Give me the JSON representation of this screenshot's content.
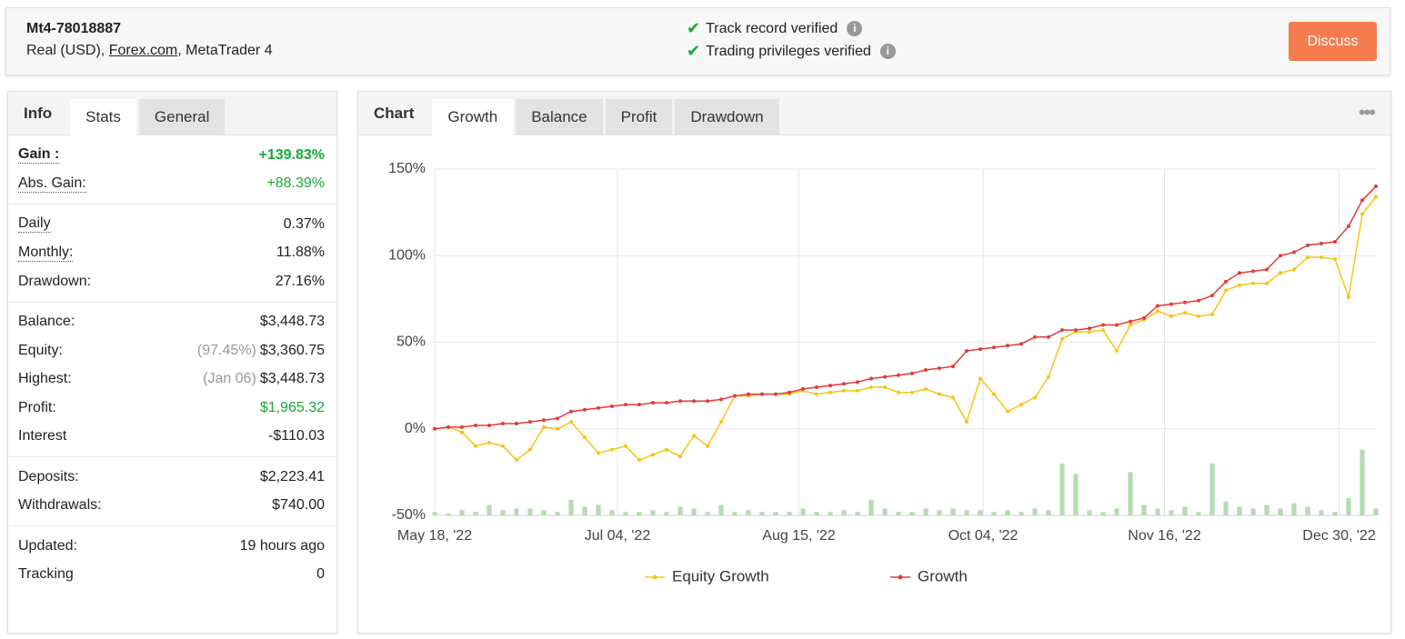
{
  "header": {
    "title": "Mt4-78018887",
    "account": "Real (USD), ",
    "broker": "Forex.com",
    "platform": ", MetaTrader 4",
    "verifications": [
      "Track record verified",
      "Trading privileges verified"
    ],
    "button": "Discuss"
  },
  "left_panel": {
    "tabs": [
      "Info",
      "Stats",
      "General"
    ],
    "active": 1,
    "groups": [
      [
        {
          "label": "Gain :",
          "value": "+139.83%",
          "color": "#19a83c",
          "bold": true,
          "dotted": true
        },
        {
          "label": "Abs. Gain:",
          "value": "+88.39%",
          "color": "#19a83c",
          "dotted": true
        }
      ],
      [
        {
          "label": "Daily",
          "value": "0.37%",
          "dotted": true
        },
        {
          "label": "Monthly:",
          "value": "11.88%",
          "dotted": true
        },
        {
          "label": "Drawdown:",
          "value": "27.16%"
        }
      ],
      [
        {
          "label": "Balance:",
          "value": "$3,448.73"
        },
        {
          "label": "Equity:",
          "note": "(97.45%)",
          "value": "$3,360.75"
        },
        {
          "label": "Highest:",
          "note": "(Jan 06)",
          "value": "$3,448.73"
        },
        {
          "label": "Profit:",
          "value": "$1,965.32",
          "color": "#19a83c"
        },
        {
          "label": "Interest",
          "value": "-$110.03"
        }
      ],
      [
        {
          "label": "Deposits:",
          "value": "$2,223.41"
        },
        {
          "label": "Withdrawals:",
          "value": "$740.00"
        }
      ],
      [
        {
          "label": "Updated:",
          "value": "19 hours ago"
        },
        {
          "label": "Tracking",
          "value": "0"
        }
      ]
    ]
  },
  "chart_panel": {
    "label": "Chart",
    "tabs": [
      "Growth",
      "Balance",
      "Profit",
      "Drawdown"
    ],
    "active": 0
  },
  "chart_data": {
    "type": "line",
    "grid": true,
    "x": [
      0,
      1,
      2,
      3,
      4,
      5,
      6,
      7,
      8,
      9,
      10,
      11,
      12,
      13,
      14,
      15,
      16,
      17,
      18,
      19,
      20,
      21,
      22,
      23,
      24,
      25,
      26,
      27,
      28,
      29,
      30,
      31,
      32,
      33,
      34,
      35,
      36,
      37,
      38,
      39,
      40,
      41,
      42,
      43,
      44,
      45,
      46,
      47,
      48,
      49,
      50,
      51,
      52,
      53,
      54,
      55,
      56,
      57,
      58,
      59,
      60,
      61,
      62,
      63,
      64,
      65,
      66,
      67,
      68,
      69
    ],
    "xlim": [
      0,
      69
    ],
    "xticks": [
      {
        "value": 0,
        "label": "May 18, '22"
      },
      {
        "value": 13.4,
        "label": "Jul 04, '22"
      },
      {
        "value": 26.7,
        "label": "Aug 15, '22"
      },
      {
        "value": 40.2,
        "label": "Oct 04, '22"
      },
      {
        "value": 53.5,
        "label": "Nov 16, '22"
      },
      {
        "value": 66.3,
        "label": "Dec 30, '22"
      }
    ],
    "ylim": [
      -50,
      150
    ],
    "yticks": [
      {
        "value": 150,
        "label": "150%"
      },
      {
        "value": 100,
        "label": "100%"
      },
      {
        "value": 50,
        "label": "50%"
      },
      {
        "value": 0,
        "label": "0%"
      },
      {
        "value": -50,
        "label": "-50%"
      }
    ],
    "y2lim": [
      0,
      200
    ],
    "series": [
      {
        "name": "Equity Growth",
        "color": "#f5c518",
        "values": [
          0,
          1,
          -2,
          -10,
          -8,
          -10,
          -18,
          -12,
          1,
          0,
          4,
          -5,
          -14,
          -12,
          -10,
          -18,
          -15,
          -12,
          -16,
          -4,
          -10,
          4,
          19,
          19,
          20,
          20,
          20,
          22,
          20,
          21,
          22,
          22,
          24,
          24,
          21,
          21,
          23,
          20,
          18,
          4,
          29,
          20,
          10,
          14,
          18,
          30,
          52,
          56,
          56,
          57,
          45,
          60,
          63,
          68,
          65,
          67,
          65,
          66,
          80,
          83,
          84,
          84,
          90,
          92,
          99,
          99,
          98,
          76,
          124,
          134
        ]
      },
      {
        "name": "Growth",
        "color": "#e03b3b",
        "values": [
          0,
          1,
          1,
          2,
          2,
          3,
          3,
          4,
          5,
          6,
          10,
          11,
          12,
          13,
          14,
          14,
          15,
          15,
          16,
          16,
          16,
          17,
          19,
          20,
          20,
          20,
          21,
          23,
          24,
          25,
          26,
          27,
          29,
          30,
          31,
          32,
          34,
          35,
          36,
          45,
          46,
          47,
          48,
          49,
          53,
          53,
          57,
          57,
          58,
          60,
          60,
          62,
          64,
          71,
          72,
          73,
          74,
          77,
          85,
          90,
          91,
          92,
          100,
          102,
          106,
          107,
          108,
          117,
          132,
          140
        ]
      },
      {
        "type": "bar",
        "axis": "y2",
        "color": "#b5dcb0",
        "values": [
          2,
          1,
          3,
          2,
          6,
          3,
          4,
          4,
          3,
          2,
          9,
          5,
          6,
          3,
          2,
          2,
          3,
          2,
          5,
          4,
          2,
          6,
          2,
          3,
          2,
          2,
          2,
          4,
          2,
          2,
          3,
          2,
          9,
          4,
          2,
          2,
          4,
          3,
          4,
          3,
          3,
          2,
          3,
          2,
          4,
          3,
          30,
          24,
          3,
          2,
          4,
          25,
          6,
          4,
          3,
          5,
          2,
          30,
          8,
          5,
          4,
          6,
          4,
          7,
          5,
          3,
          2,
          10,
          38,
          4
        ]
      }
    ]
  }
}
